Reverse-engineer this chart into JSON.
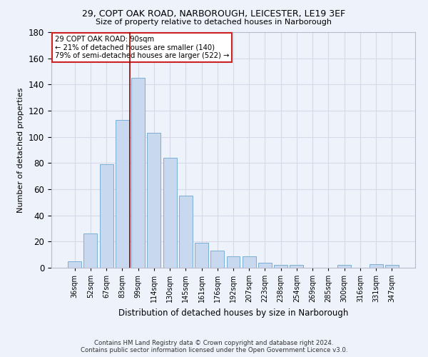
{
  "title_line1": "29, COPT OAK ROAD, NARBOROUGH, LEICESTER, LE19 3EF",
  "title_line2": "Size of property relative to detached houses in Narborough",
  "xlabel": "Distribution of detached houses by size in Narborough",
  "ylabel": "Number of detached properties",
  "footer_line1": "Contains HM Land Registry data © Crown copyright and database right 2024.",
  "footer_line2": "Contains public sector information licensed under the Open Government Licence v3.0.",
  "annotation_line1": "29 COPT OAK ROAD: 90sqm",
  "annotation_line2": "← 21% of detached houses are smaller (140)",
  "annotation_line3": "79% of semi-detached houses are larger (522) →",
  "bar_labels": [
    "36sqm",
    "52sqm",
    "67sqm",
    "83sqm",
    "99sqm",
    "114sqm",
    "130sqm",
    "145sqm",
    "161sqm",
    "176sqm",
    "192sqm",
    "207sqm",
    "223sqm",
    "238sqm",
    "254sqm",
    "269sqm",
    "285sqm",
    "300sqm",
    "316sqm",
    "331sqm",
    "347sqm"
  ],
  "bar_values": [
    5,
    26,
    79,
    113,
    145,
    103,
    84,
    55,
    19,
    13,
    9,
    9,
    4,
    2,
    2,
    0,
    0,
    2,
    0,
    3,
    2
  ],
  "bar_color": "#c8d8ee",
  "bar_edge_color": "#7bafd4",
  "vline_color": "#990000",
  "ylim": [
    0,
    180
  ],
  "yticks": [
    0,
    20,
    40,
    60,
    80,
    100,
    120,
    140,
    160,
    180
  ],
  "grid_color": "#d8d8e8",
  "annotation_box_color": "#ffffff",
  "annotation_box_edge": "#cc2222",
  "bg_color": "#eef2fb"
}
